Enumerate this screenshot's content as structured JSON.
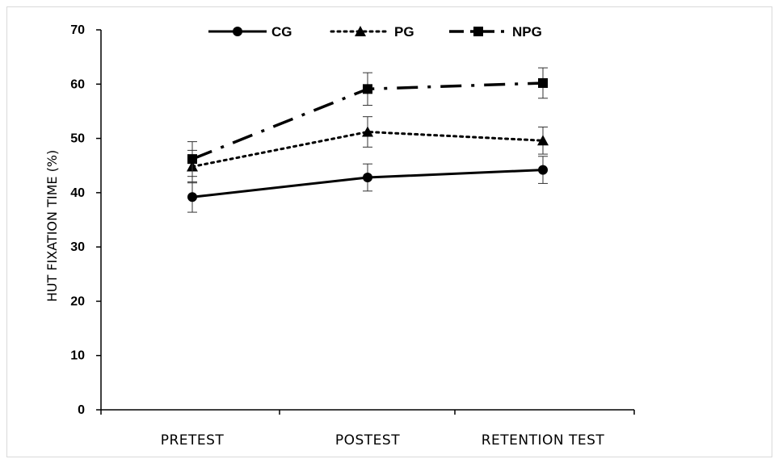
{
  "chart_data": {
    "type": "line",
    "title": "",
    "xlabel": "",
    "ylabel": "HUT FIXATION TIME (%)",
    "categories": [
      "PRETEST",
      "POSTEST",
      "RETENTION TEST"
    ],
    "ylim": [
      0,
      70
    ],
    "yticks": [
      "0",
      "10",
      "20",
      "30",
      "40",
      "50",
      "60",
      "70"
    ],
    "grid": false,
    "legend_position": "top",
    "series": [
      {
        "name": "CG",
        "values": [
          39.2,
          42.8,
          44.2
        ],
        "errors": [
          2.8,
          2.5,
          2.5
        ],
        "marker": "circle",
        "dash": "solid",
        "color": "#000000"
      },
      {
        "name": "PG",
        "values": [
          44.8,
          51.2,
          49.6
        ],
        "errors": [
          3.0,
          2.8,
          2.5
        ],
        "marker": "triangle",
        "dash": "dotted",
        "color": "#000000"
      },
      {
        "name": "NPG",
        "values": [
          46.2,
          59.1,
          60.2
        ],
        "errors": [
          3.2,
          3.0,
          2.8
        ],
        "marker": "square",
        "dash": "dash-dot",
        "color": "#000000"
      }
    ]
  }
}
